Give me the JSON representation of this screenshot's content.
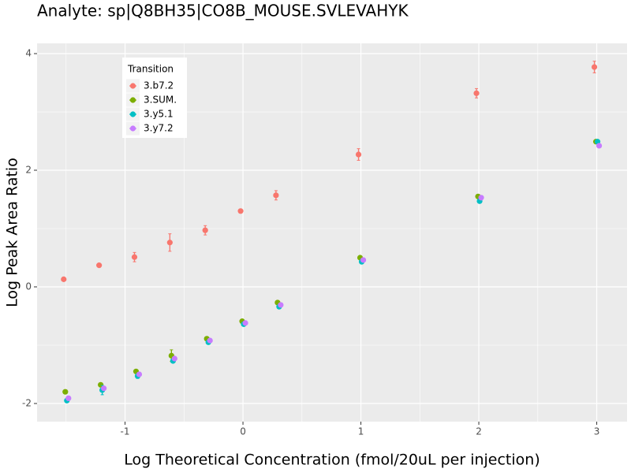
{
  "chart_data": {
    "type": "scatter",
    "title": "Analyte: sp|Q8BH35|CO8B_MOUSE.SVLEVAHYK",
    "x_label": "Log Theoretical Concentration (fmol/20uL per injection)",
    "y_label": "Log Peak Area Ratio",
    "legend_title": "Transition",
    "legend_position": "top-left",
    "grid": true,
    "x": [
      -1.5,
      -1.2,
      -0.9,
      -0.6,
      -0.3,
      0,
      0.3,
      1,
      2,
      3
    ],
    "series": [
      {
        "name": "3.b7.2",
        "color": "#F8766D",
        "values": [
          0.13,
          0.37,
          0.51,
          0.76,
          0.97,
          1.3,
          1.57,
          2.27,
          3.32,
          3.77
        ],
        "errors": [
          0.02,
          0.02,
          0.08,
          0.15,
          0.08,
          0.02,
          0.08,
          0.1,
          0.08,
          0.1
        ]
      },
      {
        "name": "3.SUM.",
        "color": "#7CAE00",
        "values": [
          -1.8,
          -1.68,
          -1.45,
          -1.18,
          -0.89,
          -0.59,
          -0.27,
          0.5,
          1.55,
          2.49
        ],
        "errors": [
          0.02,
          0.02,
          0.03,
          0.1,
          0.03,
          0.02,
          0.03,
          0.02,
          0.02,
          0.02
        ]
      },
      {
        "name": "3.y5.1",
        "color": "#00BFC4",
        "values": [
          -1.95,
          -1.77,
          -1.53,
          -1.27,
          -0.95,
          -0.64,
          -0.34,
          0.43,
          1.47,
          2.49
        ],
        "errors": [
          0.02,
          0.08,
          0.04,
          0.03,
          0.03,
          0.02,
          0.02,
          0.02,
          0.02,
          0.02
        ]
      },
      {
        "name": "3.y7.2",
        "color": "#C77CFF",
        "values": [
          -1.91,
          -1.74,
          -1.5,
          -1.23,
          -0.92,
          -0.62,
          -0.31,
          0.46,
          1.53,
          2.42
        ],
        "errors": [
          0.02,
          0.02,
          0.02,
          0.02,
          0.02,
          0.02,
          0.02,
          0.02,
          0.02,
          0.02
        ]
      }
    ],
    "xlim": [
      -1.746,
      3.257
    ],
    "xticks": [
      -1,
      0,
      1,
      2,
      3
    ],
    "ylim": [
      -2.311,
      4.176
    ],
    "yticks": [
      -2,
      0,
      2,
      4
    ]
  }
}
